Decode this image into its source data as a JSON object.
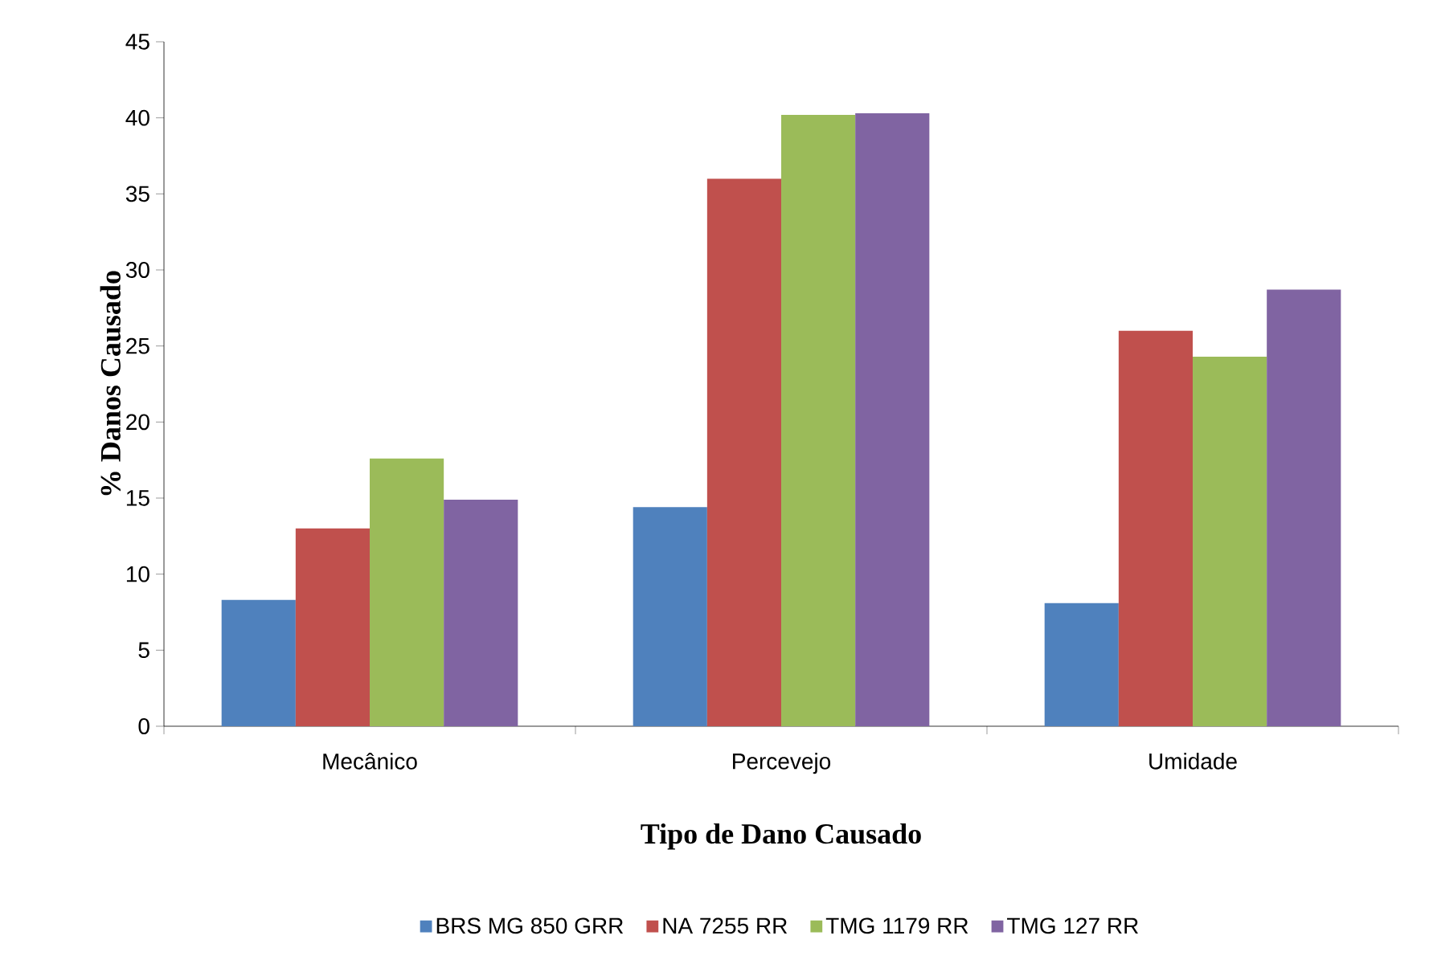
{
  "chart_data": {
    "type": "bar",
    "xlabel": "Tipo de Dano Causado",
    "ylabel": "% Danos Causado",
    "categories": [
      "Mecânico",
      "Percevejo",
      "Umidade"
    ],
    "series": [
      {
        "name": "BRS MG 850 GRR",
        "color": "#4f81bd",
        "values": [
          8.3,
          14.4,
          8.1
        ]
      },
      {
        "name": "NA 7255 RR",
        "color": "#c0504d",
        "values": [
          13.0,
          36.0,
          26.0
        ]
      },
      {
        "name": "TMG 1179 RR",
        "color": "#9bbb59",
        "values": [
          17.6,
          40.2,
          24.3
        ]
      },
      {
        "name": "TMG 127 RR",
        "color": "#8064a2",
        "values": [
          14.9,
          40.3,
          28.7
        ]
      }
    ],
    "ylim": [
      0,
      45
    ],
    "yticks": [
      0,
      5,
      10,
      15,
      20,
      25,
      30,
      35,
      40,
      45
    ],
    "grid": false,
    "legend": "bottom"
  }
}
